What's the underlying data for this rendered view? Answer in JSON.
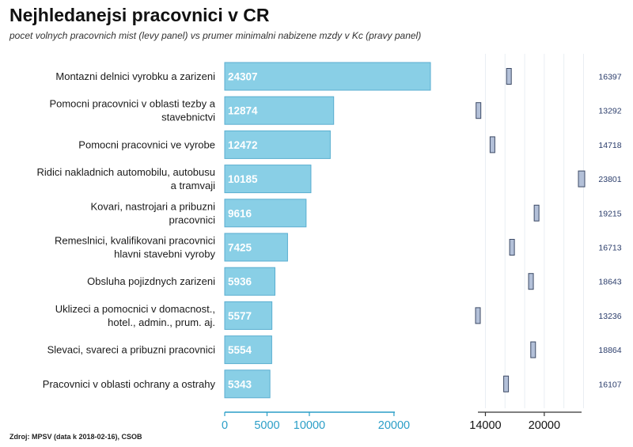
{
  "header": {
    "title": "Nejhledanejsi pracovnici v CR",
    "subtitle": "pocet volnych pracovnich mist (levy panel) vs prumer minimalni nabizene mzdy v Kc (pravy panel)"
  },
  "footer": {
    "source": "Zdroj: MPSV (data k 2018-02-16), CSOB"
  },
  "colors": {
    "bar_fill": "#89cfe6",
    "bar_stroke": "#5aaed0",
    "wage_fill": "#b3c0d8",
    "wage_stroke": "#3c4a66",
    "axis": "#2a9ec7",
    "wage_label": "#2b3d6b",
    "grid": "#e9eef3"
  },
  "chart_data": [
    {
      "type": "bar",
      "orientation": "horizontal",
      "panel": "left",
      "categories": [
        [
          "Montazni delnici vyrobku a zarizeni"
        ],
        [
          "Pomocni pracovnici v oblasti tezby a",
          "stavebnictvi"
        ],
        [
          "Pomocni pracovnici ve vyrobe"
        ],
        [
          "Ridici nakladnich automobilu, autobusu",
          "a tramvaji"
        ],
        [
          "Kovari, nastrojari a pribuzni",
          "pracovnici"
        ],
        [
          "Remeslnici, kvalifikovani pracovnici",
          "hlavni stavebni vyroby"
        ],
        [
          "Obsluha pojizdnych zarizeni"
        ],
        [
          "Uklizeci a pomocnici v domacnost.,",
          "hotel., admin., prum. aj."
        ],
        [
          "Slevaci, svareci a pribuzni pracovnici"
        ],
        [
          "Pracovnici v oblasti ochrany a ostrahy"
        ]
      ],
      "values": [
        24307,
        12874,
        12472,
        10185,
        9616,
        7425,
        5936,
        5577,
        5554,
        5343
      ],
      "xlim": [
        0,
        24307
      ],
      "xticks": [
        0,
        5000,
        10000,
        20000
      ],
      "xtick_labels": [
        "0",
        "5000",
        "10000",
        "20000"
      ]
    },
    {
      "type": "scatter",
      "panel": "right",
      "marker": "rectangle",
      "values": [
        16397,
        13292,
        14718,
        23801,
        19215,
        16713,
        18643,
        13236,
        18864,
        16107
      ],
      "value_labels": [
        "16397",
        "13292",
        "14718",
        "23801",
        "19215",
        "16713",
        "18643",
        "13236",
        "18864",
        "16107"
      ],
      "xlim": [
        13236,
        23801
      ],
      "xticks": [
        14000,
        20000
      ],
      "xtick_labels": [
        "14000",
        "20000"
      ]
    }
  ]
}
